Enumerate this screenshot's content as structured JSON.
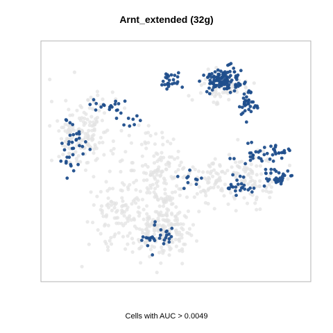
{
  "chart_data": {
    "type": "scatter",
    "title": "Arnt_extended (32g)",
    "xlabel": "",
    "ylabel": "",
    "caption": "Cells with AUC > 0.0049",
    "axes_shown": false,
    "grid": false,
    "legend": "none",
    "colors": {
      "background_cells": "#e3e3e3",
      "high_auc_cells": "#1f4e8c",
      "panel_border": "#b3b3b3"
    },
    "series": [
      {
        "name": "",
        "color_role": "background_cells",
        "clusters": [
          {
            "cx": 14,
            "cy": 62,
            "rx": 13,
            "ry": 16,
            "n": 170
          },
          {
            "cx": 27,
            "cy": 28,
            "rx": 10,
            "ry": 14,
            "n": 90
          },
          {
            "cx": 44,
            "cy": 40,
            "rx": 13,
            "ry": 22,
            "n": 190
          },
          {
            "cx": 45,
            "cy": 21,
            "rx": 9,
            "ry": 8,
            "n": 60
          },
          {
            "cx": 64,
            "cy": 42,
            "rx": 8,
            "ry": 11,
            "n": 60
          },
          {
            "cx": 79,
            "cy": 42,
            "rx": 11,
            "ry": 12,
            "n": 90
          },
          {
            "cx": 67,
            "cy": 82,
            "rx": 10,
            "ry": 7,
            "n": 60
          },
          {
            "cx": 43,
            "cy": 17,
            "rx": 12,
            "ry": 9,
            "n": 110
          }
        ]
      },
      {
        "name": "",
        "color_role": "high_auc_cells",
        "clusters": [
          {
            "cx": 68,
            "cy": 85,
            "rx": 8,
            "ry": 5,
            "n": 110
          },
          {
            "cx": 78,
            "cy": 75,
            "rx": 4,
            "ry": 6,
            "n": 35
          },
          {
            "cx": 47,
            "cy": 84,
            "rx": 5,
            "ry": 4,
            "n": 25
          },
          {
            "cx": 84,
            "cy": 53,
            "rx": 9,
            "ry": 4,
            "n": 40
          },
          {
            "cx": 90,
            "cy": 43,
            "rx": 6,
            "ry": 4,
            "n": 30
          },
          {
            "cx": 76,
            "cy": 39,
            "rx": 6,
            "ry": 4,
            "n": 25
          },
          {
            "cx": 9,
            "cy": 55,
            "rx": 6,
            "ry": 13,
            "n": 35
          },
          {
            "cx": 24,
            "cy": 74,
            "rx": 6,
            "ry": 5,
            "n": 18
          },
          {
            "cx": 43,
            "cy": 16,
            "rx": 7,
            "ry": 5,
            "n": 28
          },
          {
            "cx": 55,
            "cy": 41,
            "rx": 5,
            "ry": 4,
            "n": 10
          },
          {
            "cx": 33,
            "cy": 68,
            "rx": 6,
            "ry": 6,
            "n": 8
          }
        ]
      }
    ]
  }
}
